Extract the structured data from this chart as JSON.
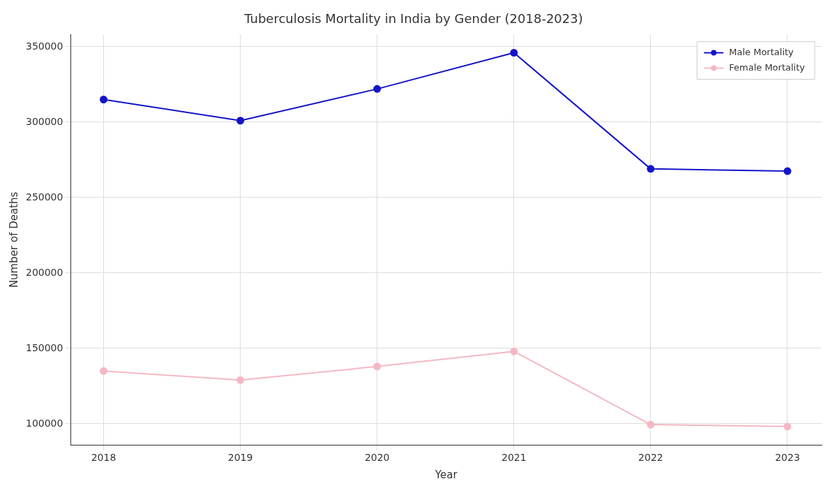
{
  "chart_data": {
    "type": "line",
    "title": "Tuberculosis Mortality in India by Gender (2018-2023)",
    "xlabel": "Year",
    "ylabel": "Number of Deaths",
    "x": [
      2018,
      2019,
      2020,
      2021,
      2022,
      2023
    ],
    "series": [
      {
        "name": "Male Mortality",
        "color": "#1414c8",
        "values": [
          315000,
          301000,
          322000,
          346000,
          269000,
          267500
        ]
      },
      {
        "name": "Female Mortality",
        "color": "#f4b8c4",
        "values": [
          135000,
          129000,
          138000,
          148000,
          99500,
          98200
        ]
      }
    ],
    "xlim": [
      2017.76,
      2023.25
    ],
    "xticks": [
      2018,
      2019,
      2020,
      2021,
      2022,
      2023
    ],
    "ylim": [
      86000,
      358000
    ],
    "yticks": [
      100000,
      150000,
      200000,
      250000,
      300000,
      350000
    ],
    "grid": true,
    "legend": "top right",
    "marker": "circle",
    "line_style": "solid"
  }
}
